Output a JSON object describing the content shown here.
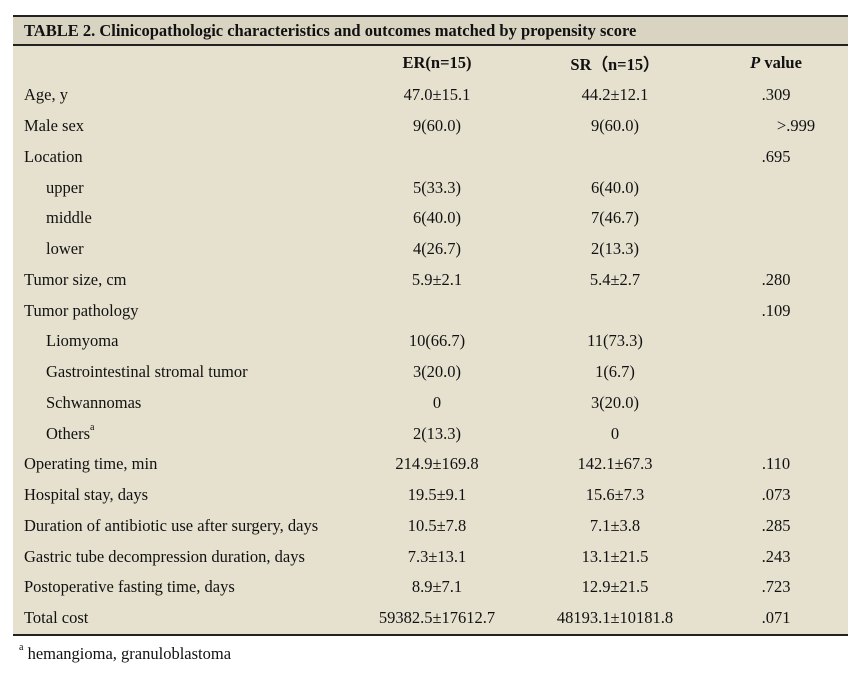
{
  "table": {
    "title": "TABLE 2. Clinicopathologic characteristics and outcomes matched by propensity score",
    "headers": {
      "col1": "",
      "col2": "ER(n=15)",
      "col3": "SR（n=15）",
      "col4_italic": "P",
      "col4_rest": " value"
    },
    "rows": [
      {
        "label": "Age, y",
        "er": "47.0±15.1",
        "sr": "44.2±12.1",
        "p": ".309",
        "indent": false
      },
      {
        "label": "Male sex",
        "er": "9(60.0)",
        "sr": "9(60.0)",
        "p": ">.999",
        "indent": false,
        "shift": true
      },
      {
        "label": "Location",
        "er": "",
        "sr": "",
        "p": ".695",
        "indent": false
      },
      {
        "label": "upper",
        "er": "5(33.3)",
        "sr": "6(40.0)",
        "p": "",
        "indent": true
      },
      {
        "label": "middle",
        "er": "6(40.0)",
        "sr": "7(46.7)",
        "p": "",
        "indent": true
      },
      {
        "label": "lower",
        "er": "4(26.7)",
        "sr": "2(13.3)",
        "p": "",
        "indent": true
      },
      {
        "label": "Tumor size, cm",
        "er": "5.9±2.1",
        "sr": "5.4±2.7",
        "p": ".280",
        "indent": false
      },
      {
        "label": "Tumor pathology",
        "er": "",
        "sr": "",
        "p": ".109",
        "indent": false
      },
      {
        "label": "Liomyoma",
        "er": "10(66.7)",
        "sr": "11(73.3)",
        "p": "",
        "indent": true
      },
      {
        "label": "Gastrointestinal stromal tumor",
        "er": "3(20.0)",
        "sr": "1(6.7)",
        "p": "",
        "indent": true
      },
      {
        "label": "Schwannomas",
        "er": "0",
        "sr": "3(20.0)",
        "p": "",
        "indent": true
      },
      {
        "label": "Others",
        "sup": "a",
        "er": "2(13.3)",
        "sr": "0",
        "p": "",
        "indent": true
      },
      {
        "label": "Operating time, min",
        "er": "214.9±169.8",
        "sr": "142.1±67.3",
        "p": ".110",
        "indent": false
      },
      {
        "label": "Hospital stay, days",
        "er": "19.5±9.1",
        "sr": "15.6±7.3",
        "p": ".073",
        "indent": false
      },
      {
        "label": "Duration of antibiotic use after surgery, days",
        "er": "10.5±7.8",
        "sr": "7.1±3.8",
        "p": ".285",
        "indent": false
      },
      {
        "label": "Gastric tube decompression duration, days",
        "er": "7.3±13.1",
        "sr": "13.1±21.5",
        "p": ".243",
        "indent": false
      },
      {
        "label": "Postoperative fasting time, days",
        "er": "8.9±7.1",
        "sr": "12.9±21.5",
        "p": ".723",
        "indent": false
      },
      {
        "label": "Total cost",
        "er": "59382.5±17612.7",
        "sr": "48193.1±10181.8",
        "p": ".071",
        "indent": false
      }
    ]
  },
  "footnote": {
    "sup": "a",
    "text": " hemangioma, granuloblastoma"
  }
}
